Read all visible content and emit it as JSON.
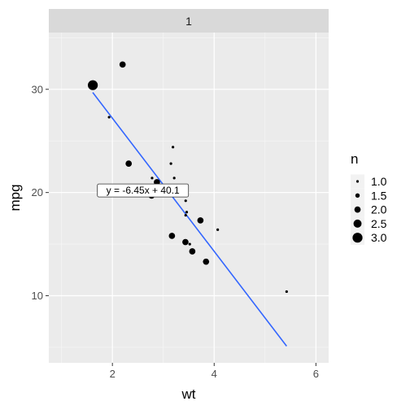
{
  "chart_data": {
    "type": "scatter",
    "facet_label": "1",
    "xlabel": "wt",
    "ylabel": "mpg",
    "xlim": [
      0.75,
      6.25
    ],
    "ylim": [
      3.5,
      35.5
    ],
    "x_ticks": [
      2,
      4,
      6
    ],
    "y_ticks": [
      10,
      20,
      30
    ],
    "grid": true,
    "legend": {
      "title": "n",
      "position": "right",
      "entries": [
        {
          "label": "1.0",
          "size": 1.0
        },
        {
          "label": "1.5",
          "size": 1.5
        },
        {
          "label": "2.0",
          "size": 2.0
        },
        {
          "label": "2.5",
          "size": 2.5
        },
        {
          "label": "3.0",
          "size": 3.0
        }
      ]
    },
    "points": [
      {
        "x": 1.615,
        "y": 30.4,
        "n": 3
      },
      {
        "x": 2.2,
        "y": 32.4,
        "n": 2
      },
      {
        "x": 1.935,
        "y": 27.3,
        "n": 1
      },
      {
        "x": 2.32,
        "y": 22.8,
        "n": 2
      },
      {
        "x": 2.875,
        "y": 21.0,
        "n": 2
      },
      {
        "x": 2.78,
        "y": 21.4,
        "n": 1
      },
      {
        "x": 2.77,
        "y": 19.7,
        "n": 2
      },
      {
        "x": 3.19,
        "y": 24.4,
        "n": 1
      },
      {
        "x": 3.15,
        "y": 22.8,
        "n": 1
      },
      {
        "x": 3.215,
        "y": 21.4,
        "n": 1
      },
      {
        "x": 3.44,
        "y": 19.2,
        "n": 1
      },
      {
        "x": 3.46,
        "y": 18.1,
        "n": 1
      },
      {
        "x": 3.44,
        "y": 17.8,
        "n": 1
      },
      {
        "x": 3.73,
        "y": 17.3,
        "n": 2
      },
      {
        "x": 4.07,
        "y": 16.4,
        "n": 1
      },
      {
        "x": 3.17,
        "y": 15.8,
        "n": 2
      },
      {
        "x": 3.435,
        "y": 15.2,
        "n": 2
      },
      {
        "x": 3.52,
        "y": 15.0,
        "n": 1
      },
      {
        "x": 3.57,
        "y": 14.3,
        "n": 2
      },
      {
        "x": 3.84,
        "y": 13.3,
        "n": 2
      },
      {
        "x": 5.424,
        "y": 10.4,
        "n": 1
      }
    ],
    "fit_line": {
      "x_start": 1.613,
      "x_end": 5.424,
      "slope": -6.45,
      "intercept": 40.1,
      "color": "#3366ff"
    },
    "annotation": {
      "text": "y = -6.45x + 40.1",
      "x": 2.6,
      "y": 20.2
    },
    "colors": {
      "panel_bg": "#ebebeb",
      "strip_bg": "#d9d9d9",
      "grid_major": "#ffffff",
      "point": "#000000"
    }
  }
}
